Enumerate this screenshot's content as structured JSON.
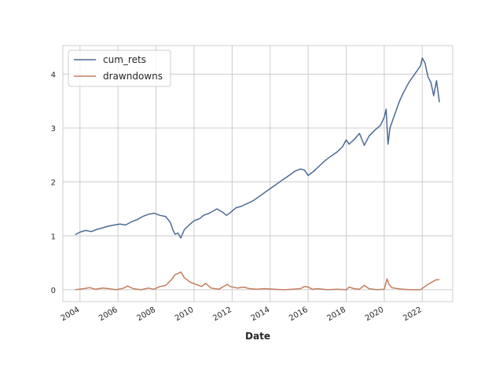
{
  "chart_data": {
    "type": "line",
    "title": "",
    "xlabel": "Date",
    "ylabel": "",
    "xlim": [
      2003.1,
      2023.6
    ],
    "ylim": [
      -0.22,
      4.53
    ],
    "grid": true,
    "legend_position": "top-left",
    "x_ticks": [
      "2004",
      "2006",
      "2008",
      "2010",
      "2012",
      "2014",
      "2016",
      "2018",
      "2020",
      "2022"
    ],
    "y_ticks": [
      "0",
      "1",
      "2",
      "3",
      "4"
    ],
    "series": [
      {
        "name": "cum_rets",
        "color": "#4c6a94",
        "x": [
          2003.75,
          2004.0,
          2004.3,
          2004.6,
          2004.9,
          2005.2,
          2005.5,
          2005.8,
          2006.1,
          2006.4,
          2006.7,
          2007.0,
          2007.3,
          2007.6,
          2007.9,
          2008.2,
          2008.5,
          2008.75,
          2008.9,
          2009.0,
          2009.15,
          2009.3,
          2009.5,
          2009.8,
          2010.0,
          2010.3,
          2010.5,
          2010.8,
          2011.2,
          2011.5,
          2011.7,
          2011.9,
          2012.2,
          2012.5,
          2012.8,
          2013.1,
          2013.5,
          2013.9,
          2014.3,
          2014.7,
          2015.0,
          2015.3,
          2015.6,
          2015.8,
          2016.0,
          2016.3,
          2016.6,
          2016.9,
          2017.2,
          2017.5,
          2017.8,
          2018.0,
          2018.15,
          2018.4,
          2018.7,
          2018.95,
          2019.2,
          2019.5,
          2019.8,
          2020.0,
          2020.1,
          2020.2,
          2020.3,
          2020.5,
          2020.8,
          2021.0,
          2021.3,
          2021.6,
          2021.9,
          2022.0,
          2022.15,
          2022.3,
          2022.45,
          2022.6,
          2022.75,
          2022.9
        ],
        "y": [
          1.02,
          1.07,
          1.1,
          1.08,
          1.12,
          1.15,
          1.18,
          1.2,
          1.22,
          1.2,
          1.26,
          1.3,
          1.36,
          1.4,
          1.42,
          1.38,
          1.36,
          1.25,
          1.1,
          1.03,
          1.05,
          0.96,
          1.12,
          1.22,
          1.28,
          1.32,
          1.38,
          1.42,
          1.5,
          1.44,
          1.38,
          1.43,
          1.52,
          1.55,
          1.6,
          1.65,
          1.75,
          1.85,
          1.95,
          2.05,
          2.12,
          2.2,
          2.24,
          2.22,
          2.12,
          2.2,
          2.3,
          2.4,
          2.48,
          2.55,
          2.65,
          2.78,
          2.7,
          2.78,
          2.9,
          2.68,
          2.85,
          2.96,
          3.05,
          3.2,
          3.35,
          2.7,
          3.0,
          3.2,
          3.5,
          3.65,
          3.85,
          4.0,
          4.15,
          4.3,
          4.2,
          3.95,
          3.85,
          3.6,
          3.88,
          3.48
        ]
      },
      {
        "name": "drawndowns",
        "color": "#c47e5e",
        "x": [
          2003.75,
          2004.2,
          2004.5,
          2004.8,
          2005.2,
          2005.5,
          2005.9,
          2006.3,
          2006.5,
          2006.8,
          2007.2,
          2007.6,
          2007.9,
          2008.2,
          2008.5,
          2008.8,
          2009.0,
          2009.15,
          2009.3,
          2009.5,
          2009.8,
          2010.1,
          2010.4,
          2010.6,
          2010.9,
          2011.3,
          2011.6,
          2011.75,
          2011.9,
          2012.3,
          2012.6,
          2012.9,
          2013.3,
          2013.7,
          2014.2,
          2014.7,
          2015.2,
          2015.6,
          2015.8,
          2016.0,
          2016.2,
          2016.5,
          2017.0,
          2017.5,
          2018.0,
          2018.15,
          2018.4,
          2018.7,
          2018.95,
          2019.2,
          2019.6,
          2020.0,
          2020.15,
          2020.25,
          2020.4,
          2020.7,
          2021.0,
          2021.4,
          2021.9,
          2022.1,
          2022.3,
          2022.5,
          2022.7,
          2022.9
        ],
        "y": [
          0.0,
          0.02,
          0.04,
          0.01,
          0.03,
          0.02,
          0.0,
          0.03,
          0.07,
          0.02,
          0.0,
          0.03,
          0.01,
          0.06,
          0.08,
          0.18,
          0.28,
          0.3,
          0.33,
          0.22,
          0.14,
          0.1,
          0.06,
          0.12,
          0.03,
          0.01,
          0.07,
          0.1,
          0.06,
          0.03,
          0.05,
          0.02,
          0.01,
          0.02,
          0.01,
          0.0,
          0.01,
          0.02,
          0.06,
          0.05,
          0.01,
          0.02,
          0.0,
          0.01,
          0.0,
          0.05,
          0.02,
          0.01,
          0.08,
          0.02,
          0.0,
          0.01,
          0.2,
          0.1,
          0.04,
          0.02,
          0.01,
          0.0,
          0.0,
          0.05,
          0.1,
          0.14,
          0.18,
          0.19
        ]
      }
    ]
  }
}
